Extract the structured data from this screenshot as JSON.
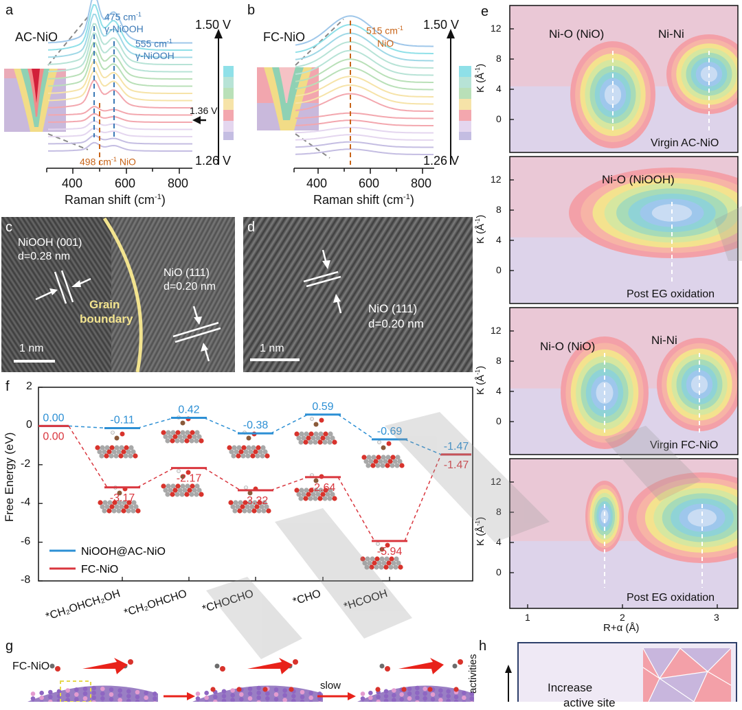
{
  "panel_letters": {
    "a": "a",
    "b": "b",
    "c": "c",
    "d": "d",
    "e": "e",
    "f": "f",
    "g": "g",
    "h": "h"
  },
  "colors": {
    "blue": "#2c8fd4",
    "red": "#d9363e",
    "orange": "#c86418",
    "raman_blue": "#3a78b5"
  },
  "panel_a": {
    "sample": "AC-NiO",
    "peak1_wn": "475 cm",
    "peak1_sup": "-1",
    "peak1_name": "γ-NiOOH",
    "peak2_wn": "555 cm",
    "peak2_sup": "-1",
    "peak2_name": "γ-NiOOH",
    "peak3_wn": "498 cm",
    "peak3_sup": "-1",
    "peak3_name": "NiO",
    "v_top": "1.50 V",
    "v_mid": "1.36 V",
    "v_bot": "1.26 V",
    "xticks": [
      "400",
      "600",
      "800"
    ],
    "xlabel_main": "Raman shift (cm",
    "xlabel_sup": "-1",
    "xlabel_end": ")"
  },
  "panel_b": {
    "sample": "FC-NiO",
    "peak_wn": "515 cm",
    "peak_sup": "-1",
    "peak_name": "NiO",
    "v_top": "1.50 V",
    "v_bot": "1.26 V",
    "xticks": [
      "400",
      "600",
      "800"
    ],
    "xlabel_main": "Raman shift (cm",
    "xlabel_sup": "-1",
    "xlabel_end": ")"
  },
  "panel_c": {
    "phase1": "NiOOH (001)",
    "phase1_d": "d=0.28 nm",
    "phase2": "NiO (111)",
    "phase2_d": "d=0.20 nm",
    "boundary1": "Grain",
    "boundary2": "boundary",
    "scale": "1 nm"
  },
  "panel_d": {
    "phase": "NiO (111)",
    "phase_d": "d=0.20 nm",
    "scale": "1 nm"
  },
  "panel_e": {
    "ylabel": "K (Å",
    "ylabel_sup": "-1",
    "ylabel_end": ")",
    "xlabel": "R+α (Å)",
    "yticks": [
      "12",
      "8",
      "4",
      "0"
    ],
    "xticks": [
      "1",
      "2",
      "3"
    ],
    "maps": [
      {
        "caption": "Virgin AC-NiO",
        "peak_labels": [
          "Ni-O (NiO)",
          "Ni-Ni"
        ]
      },
      {
        "caption": "Post EG oxidation",
        "peak_labels": [
          "Ni-O (NiOOH)"
        ]
      },
      {
        "caption": "Virgin FC-NiO",
        "peak_labels": [
          "Ni-O (NiO)",
          "Ni-Ni"
        ]
      },
      {
        "caption": "Post EG oxidation",
        "peak_labels": []
      }
    ]
  },
  "panel_f": {
    "ylabel": "Free Energy (eV)",
    "yticks": [
      "2",
      "0",
      "-2",
      "-4",
      "-6",
      "-8"
    ],
    "legend_blue": "NiOOH@AC-NiO",
    "legend_red": "FC-NiO",
    "blue_values": [
      "0.00",
      "-0.11",
      "0.42",
      "-0.38",
      "0.59",
      "-0.69",
      "-1.47"
    ],
    "red_values": [
      "0.00",
      "-3.17",
      "-2.17",
      "-3.32",
      "-2.64",
      "-5.94",
      "-1.47"
    ],
    "categories": [
      "*CH2OHCH2OH",
      "*CH2OHCHO",
      "*CHOCHO",
      "*CHO",
      "*HCOOH"
    ]
  },
  "chart_data": {
    "type": "line",
    "title": "",
    "xlabel": "",
    "ylabel": "Free Energy (eV)",
    "ylim": [
      -8,
      2
    ],
    "categories": [
      "",
      "*CH2OHCH2OH",
      "*CH2OHCHO",
      "*CHOCHO",
      "*CHO",
      "*HCOOH",
      ""
    ],
    "series": [
      {
        "name": "NiOOH@AC-NiO",
        "values": [
          0.0,
          -0.11,
          0.42,
          -0.38,
          0.59,
          -0.69,
          -1.47
        ]
      },
      {
        "name": "FC-NiO",
        "values": [
          0.0,
          -3.17,
          -2.17,
          -3.32,
          -2.64,
          -5.94,
          -1.47
        ]
      }
    ]
  },
  "panel_g": {
    "sample": "FC-NiO",
    "arrow_text": "slow"
  },
  "panel_h": {
    "ylabel": "activities",
    "text_line1": "Increase",
    "text_line2": "active site"
  }
}
